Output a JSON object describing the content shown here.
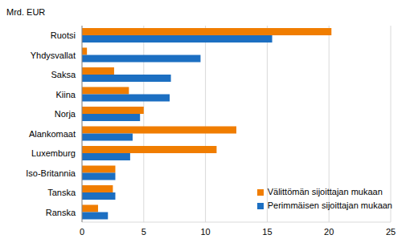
{
  "chart_data": {
    "type": "bar",
    "orientation": "horizontal",
    "x_label": "Mrd. EUR",
    "categories": [
      "Ruotsi",
      "Yhdysvallat",
      "Saksa",
      "Kiina",
      "Norja",
      "Alankomaat",
      "Luxemburg",
      "Iso-Britannia",
      "Tanska",
      "Ranska"
    ],
    "series": [
      {
        "name": "Välittömän sijoittajan mukaan",
        "color": "#f07d00",
        "values": [
          20.2,
          0.4,
          2.6,
          3.8,
          5.0,
          12.5,
          10.9,
          2.7,
          2.5,
          1.3
        ]
      },
      {
        "name": "Perimmäisen sijoittajan mukaan",
        "color": "#1c6fc2",
        "values": [
          15.4,
          9.6,
          7.2,
          7.1,
          4.7,
          4.1,
          3.9,
          2.7,
          2.7,
          2.1
        ]
      }
    ],
    "xlim": [
      0,
      25
    ],
    "xticks": [
      0,
      5,
      10,
      15,
      20,
      25
    ],
    "grid": true,
    "legend": "bottom right"
  }
}
